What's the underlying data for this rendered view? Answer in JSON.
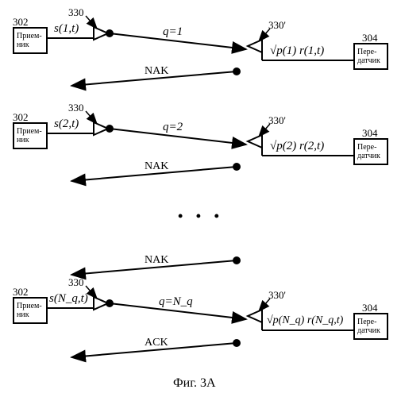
{
  "figure_caption": "Фиг. 3А",
  "colors": {
    "stroke": "#000000",
    "bg": "#ffffff"
  },
  "ellipsis": "• • •",
  "rows": [
    {
      "rx_ref": "302",
      "rx_label": "Прием-\nник",
      "ant_left_ref": "330",
      "s_label": "s(1,t)",
      "q_label": "q=1",
      "ant_right_ref": "330'",
      "p_label": "√p(1) r(1,t)",
      "tx_ref": "304",
      "tx_label": "Пере-\nдатчик",
      "nak_label": "NAK"
    },
    {
      "rx_ref": "302",
      "rx_label": "Прием-\nник",
      "ant_left_ref": "330",
      "s_label": "s(2,t)",
      "q_label": "q=2",
      "ant_right_ref": "330'",
      "p_label": "√p(2) r(2,t)",
      "tx_ref": "304",
      "tx_label": "Пере-\nдатчик",
      "nak_label": "NAK"
    },
    {
      "rx_ref": "302",
      "rx_label": "Прием-\nник",
      "ant_left_ref": "330",
      "s_label": "s(N_q,t)",
      "q_label": "q=N_q",
      "ant_right_ref": "330'",
      "p_label": "√p(N_q) r(N_q,t)",
      "tx_ref": "304",
      "tx_label": "Пере-\nдатчик",
      "nak_label": "NAK",
      "ack_label": "ACK"
    }
  ]
}
